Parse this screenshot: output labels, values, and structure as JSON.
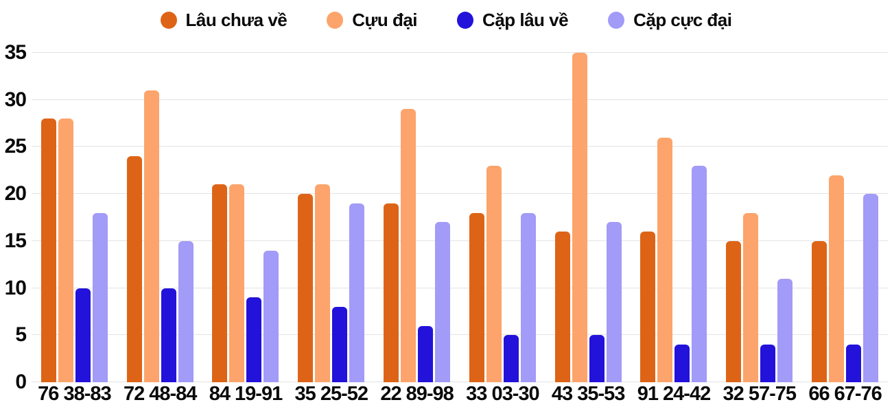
{
  "chart_data": {
    "type": "bar",
    "title": "",
    "xlabel": "",
    "ylabel": "",
    "categories": [
      "76 38-83",
      "72 48-84",
      "84 19-91",
      "35 25-52",
      "22 89-98",
      "33 03-30",
      "43 35-53",
      "91 24-42",
      "32 57-75",
      "66 67-76"
    ],
    "series": [
      {
        "name": "Lâu chưa về",
        "color": "#dd6416",
        "values": [
          28,
          24,
          21,
          20,
          19,
          18,
          16,
          16,
          15,
          15
        ]
      },
      {
        "name": "Cựu đại",
        "color": "#fca46b",
        "values": [
          28,
          31,
          21,
          21,
          29,
          23,
          35,
          26,
          18,
          22
        ]
      },
      {
        "name": "Cặp lâu về",
        "color": "#2312da",
        "values": [
          10,
          10,
          9,
          8,
          6,
          5,
          5,
          4,
          4,
          4
        ]
      },
      {
        "name": "Cặp cực đại",
        "color": "#a29bf7",
        "values": [
          18,
          15,
          14,
          19,
          17,
          18,
          17,
          23,
          11,
          20
        ]
      }
    ],
    "ylim": [
      0,
      35
    ],
    "yticks": [
      0,
      5,
      10,
      15,
      20,
      25,
      30,
      35
    ],
    "grid": true,
    "grid_color": "#e3e3e3",
    "text_color": "#0a0a0a",
    "background_color": "#ffffff",
    "legend_position": "top"
  }
}
